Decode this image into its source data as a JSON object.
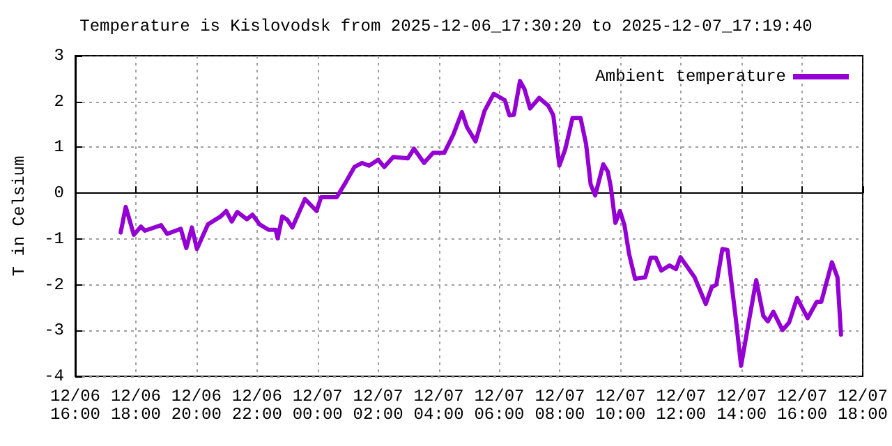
{
  "chart_data": {
    "type": "line",
    "title": "Temperature is Kislovodsk from 2025-12-06_17:30:20 to 2025-12-07_17:19:40",
    "ylabel": "T in Celsium",
    "x": [
      "2025-12-06T17:30",
      "2025-12-06T17:40",
      "2025-12-06T17:56",
      "2025-12-06T18:10",
      "2025-12-06T18:18",
      "2025-12-06T18:50",
      "2025-12-06T19:02",
      "2025-12-06T19:29",
      "2025-12-06T19:40",
      "2025-12-06T19:51",
      "2025-12-06T20:01",
      "2025-12-06T20:23",
      "2025-12-06T20:48",
      "2025-12-06T20:59",
      "2025-12-06T21:10",
      "2025-12-06T21:21",
      "2025-12-06T21:40",
      "2025-12-06T21:51",
      "2025-12-06T22:05",
      "2025-12-06T22:23",
      "2025-12-06T22:37",
      "2025-12-06T22:41",
      "2025-12-06T22:50",
      "2025-12-06T23:00",
      "2025-12-06T23:10",
      "2025-12-06T23:35",
      "2025-12-06T23:58",
      "2025-12-07T00:07",
      "2025-12-07T00:38",
      "2025-12-07T00:56",
      "2025-12-07T01:13",
      "2025-12-07T01:28",
      "2025-12-07T01:42",
      "2025-12-07T02:00",
      "2025-12-07T02:12",
      "2025-12-07T02:30",
      "2025-12-07T02:59",
      "2025-12-07T03:11",
      "2025-12-07T03:31",
      "2025-12-07T03:49",
      "2025-12-07T04:11",
      "2025-12-07T04:29",
      "2025-12-07T04:46",
      "2025-12-07T04:56",
      "2025-12-07T05:13",
      "2025-12-07T05:31",
      "2025-12-07T05:49",
      "2025-12-07T06:11",
      "2025-12-07T06:20",
      "2025-12-07T06:29",
      "2025-12-07T06:41",
      "2025-12-07T06:50",
      "2025-12-07T07:01",
      "2025-12-07T07:19",
      "2025-12-07T07:37",
      "2025-12-07T07:47",
      "2025-12-07T07:59",
      "2025-12-07T08:11",
      "2025-12-07T08:25",
      "2025-12-07T08:41",
      "2025-12-07T08:52",
      "2025-12-07T09:01",
      "2025-12-07T09:10",
      "2025-12-07T09:26",
      "2025-12-07T09:35",
      "2025-12-07T09:41",
      "2025-12-07T09:50",
      "2025-12-07T09:59",
      "2025-12-07T10:08",
      "2025-12-07T10:17",
      "2025-12-07T10:29",
      "2025-12-07T10:49",
      "2025-12-07T11:00",
      "2025-12-07T11:10",
      "2025-12-07T11:21",
      "2025-12-07T11:37",
      "2025-12-07T11:50",
      "2025-12-07T11:59",
      "2025-12-07T12:27",
      "2025-12-07T12:49",
      "2025-12-07T13:01",
      "2025-12-07T13:10",
      "2025-12-07T13:22",
      "2025-12-07T13:32",
      "2025-12-07T13:49",
      "2025-12-07T13:59",
      "2025-12-07T14:13",
      "2025-12-07T14:29",
      "2025-12-07T14:43",
      "2025-12-07T14:52",
      "2025-12-07T15:03",
      "2025-12-07T15:21",
      "2025-12-07T15:34",
      "2025-12-07T15:50",
      "2025-12-07T16:11",
      "2025-12-07T16:29",
      "2025-12-07T16:38",
      "2025-12-07T16:59",
      "2025-12-07T17:10",
      "2025-12-07T17:17"
    ],
    "series": [
      {
        "name": "Ambient temperature",
        "color": "#9400d3",
        "values": [
          -0.86,
          -0.3,
          -0.91,
          -0.73,
          -0.82,
          -0.7,
          -0.89,
          -0.78,
          -1.2,
          -0.75,
          -1.22,
          -0.68,
          -0.51,
          -0.39,
          -0.62,
          -0.41,
          -0.57,
          -0.47,
          -0.68,
          -0.8,
          -0.8,
          -0.99,
          -0.51,
          -0.58,
          -0.75,
          -0.13,
          -0.39,
          -0.09,
          -0.09,
          0.24,
          0.57,
          0.66,
          0.6,
          0.73,
          0.57,
          0.79,
          0.76,
          0.97,
          0.66,
          0.88,
          0.88,
          1.28,
          1.77,
          1.44,
          1.13,
          1.8,
          2.17,
          2.03,
          1.7,
          1.71,
          2.45,
          2.27,
          1.85,
          2.08,
          1.91,
          1.7,
          0.6,
          0.97,
          1.64,
          1.64,
          1.07,
          0.19,
          -0.05,
          0.63,
          0.47,
          0.13,
          -0.65,
          -0.39,
          -0.7,
          -1.32,
          -1.87,
          -1.84,
          -1.41,
          -1.41,
          -1.69,
          -1.58,
          -1.66,
          -1.4,
          -1.84,
          -2.42,
          -2.05,
          -2.0,
          -1.22,
          -1.24,
          -2.78,
          -3.77,
          -2.89,
          -1.9,
          -2.68,
          -2.8,
          -2.59,
          -2.99,
          -2.83,
          -2.29,
          -2.73,
          -2.37,
          -2.37,
          -1.51,
          -1.84,
          -3.09
        ]
      }
    ],
    "xlim": [
      "2025-12-06T16:00",
      "2025-12-07T18:00"
    ],
    "xticks": [
      {
        "value": "2025-12-06T16:00",
        "label": "12/06\n16:00"
      },
      {
        "value": "2025-12-06T18:00",
        "label": "12/06\n18:00"
      },
      {
        "value": "2025-12-06T20:00",
        "label": "12/06\n20:00"
      },
      {
        "value": "2025-12-06T22:00",
        "label": "12/06\n22:00"
      },
      {
        "value": "2025-12-07T00:00",
        "label": "12/07\n00:00"
      },
      {
        "value": "2025-12-07T02:00",
        "label": "12/07\n02:00"
      },
      {
        "value": "2025-12-07T04:00",
        "label": "12/07\n04:00"
      },
      {
        "value": "2025-12-07T06:00",
        "label": "12/07\n06:00"
      },
      {
        "value": "2025-12-07T08:00",
        "label": "12/07\n08:00"
      },
      {
        "value": "2025-12-07T10:00",
        "label": "12/07\n10:00"
      },
      {
        "value": "2025-12-07T12:00",
        "label": "12/07\n12:00"
      },
      {
        "value": "2025-12-07T14:00",
        "label": "12/07\n14:00"
      },
      {
        "value": "2025-12-07T16:00",
        "label": "12/07\n16:00"
      },
      {
        "value": "2025-12-07T18:00",
        "label": "12/07\n18:00"
      }
    ],
    "ylim": [
      -4,
      3
    ],
    "yticks": [
      -4,
      -3,
      -2,
      -1,
      0,
      1,
      2,
      3
    ],
    "grid": true,
    "legend": "top right",
    "marker": "none",
    "line_style": "solid"
  }
}
